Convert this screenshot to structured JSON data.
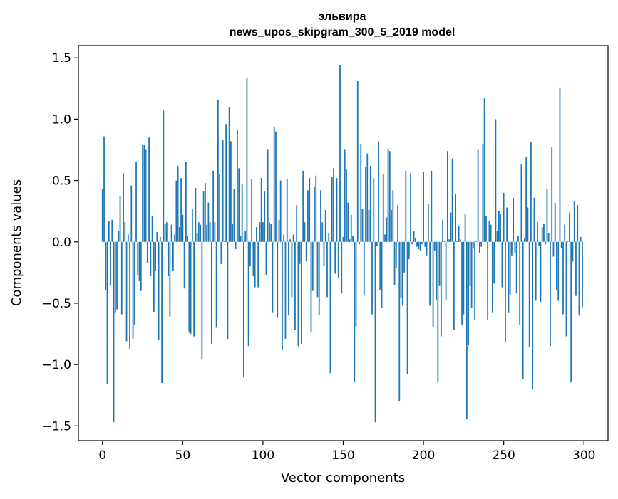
{
  "chart_data": {
    "type": "bar",
    "title": "эльвира",
    "subtitle": "news_upos_skipgram_300_5_2019 model",
    "xlabel": "Vector components",
    "ylabel": "Components values",
    "xlim": [
      -15,
      315
    ],
    "ylim": [
      -1.62,
      1.6
    ],
    "xticks": [
      0,
      50,
      100,
      150,
      200,
      250,
      300
    ],
    "yticks": [
      -1.5,
      -1.0,
      -0.5,
      0.0,
      0.5,
      1.0,
      1.5
    ],
    "ytick_labels": [
      "−1.5",
      "−1.0",
      "−0.5",
      "0.0",
      "0.5",
      "1.0",
      "1.5"
    ],
    "bar_color": "#1f77b4",
    "grid": false,
    "x": "0..299",
    "values": [
      0.43,
      0.86,
      -0.39,
      -1.16,
      0.17,
      -0.35,
      0.18,
      -1.47,
      -0.58,
      -0.55,
      0.09,
      0.37,
      -0.59,
      0.56,
      0.16,
      -0.81,
      0.06,
      -0.87,
      0.46,
      -0.79,
      -0.68,
      0.65,
      -0.27,
      -0.32,
      -0.4,
      0.79,
      0.79,
      0.75,
      -0.17,
      0.85,
      -0.28,
      0.21,
      -0.57,
      -0.24,
      0.08,
      -0.8,
      0.04,
      -1.15,
      1.07,
      0.15,
      0.16,
      -0.28,
      -0.61,
      0.14,
      -0.24,
      0.06,
      0.5,
      0.62,
      0.12,
      0.52,
      0.22,
      -0.38,
      0.65,
      0.05,
      -0.74,
      -0.75,
      0.27,
      -0.77,
      0.44,
      0.07,
      0.16,
      0.14,
      -0.96,
      0.41,
      0.48,
      0.14,
      0.32,
      0.16,
      -0.83,
      0.58,
      0.16,
      -0.7,
      1.16,
      0.55,
      -0.18,
      0.83,
      0.01,
      0.96,
      -0.79,
      1.1,
      0.82,
      0.15,
      0.43,
      -0.06,
      0.91,
      0.6,
      0.05,
      0.47,
      -1.1,
      0.09,
      1.34,
      -0.85,
      -0.2,
      0.51,
      -0.28,
      -0.37,
      0.12,
      -0.37,
      0.16,
      0.52,
      0.16,
      0.41,
      -0.27,
      0.75,
      0.16,
      0.15,
      -0.58,
      0.94,
      0.9,
      -0.62,
      0.18,
      0.5,
      -0.88,
      0.06,
      -0.79,
      0.51,
      -0.6,
      0.02,
      -0.45,
      0.06,
      -0.72,
      0.3,
      -0.85,
      -0.18,
      -0.83,
      0.58,
      0.16,
      -0.16,
      0.42,
      0.52,
      -0.74,
      -0.4,
      0.45,
      0.54,
      -0.45,
      -0.6,
      0.42,
      0.16,
      -0.2,
      0.26,
      -0.45,
      0.07,
      -1.07,
      0.53,
      0.6,
      -0.26,
      0.52,
      -0.29,
      1.44,
      -0.42,
      0.04,
      0.75,
      0.59,
      0.32,
      0.02,
      0.22,
      0.05,
      -1.14,
      -0.69,
      1.31,
      -0.02,
      0.8,
      0.27,
      -0.43,
      0.61,
      0.72,
      0.26,
      0.62,
      -0.59,
      0.52,
      -1.47,
      -0.03,
      0.82,
      -0.39,
      -0.54,
      0.55,
      0.06,
      0.2,
      0.76,
      0.74,
      0.26,
      0.42,
      -0.35,
      -0.21,
      0.3,
      -1.3,
      -0.46,
      -0.52,
      -0.25,
      0.58,
      -1.08,
      -0.14,
      0.56,
      -0.02,
      0.09,
      0.03,
      -0.04,
      -0.06,
      -0.07,
      -0.02,
      0.57,
      -0.04,
      -0.11,
      0.31,
      -0.52,
      0.58,
      -0.69,
      -0.07,
      -0.47,
      -1.14,
      -0.36,
      -0.77,
      0.18,
      0.01,
      -0.47,
      0.74,
      0.02,
      0.24,
      0.68,
      -0.72,
      0.39,
      0.01,
      0.13,
      0.02,
      -0.68,
      -0.59,
      0.23,
      -1.44,
      -0.84,
      -0.36,
      -0.54,
      -0.05,
      -0.64,
      0.01,
      0.75,
      -0.09,
      -0.04,
      0.8,
      1.17,
      0.21,
      -0.64,
      0.17,
      0.14,
      -0.58,
      -0.34,
      1.0,
      0.09,
      0.25,
      0.23,
      -0.37,
      0.4,
      -0.82,
      0.28,
      -0.58,
      -0.43,
      -0.11,
      0.36,
      -0.09,
      -0.42,
      0.05,
      -0.68,
      0.63,
      -1.12,
      0.03,
      0.69,
      0.28,
      -0.86,
      0.81,
      -1.2,
      0.36,
      -0.48,
      0.16,
      -0.03,
      -0.49,
      0.12,
      0.15,
      -0.02,
      0.43,
      0.07,
      -0.85,
      0.77,
      -0.12,
      0.32,
      -0.39,
      -0.48,
      1.26,
      -0.05,
      -0.59,
      0.14,
      -0.77,
      0.01,
      0.24,
      -1.14,
      -0.16,
      0.33,
      -0.44,
      0.3,
      -0.6,
      0.04,
      -0.53
    ]
  }
}
